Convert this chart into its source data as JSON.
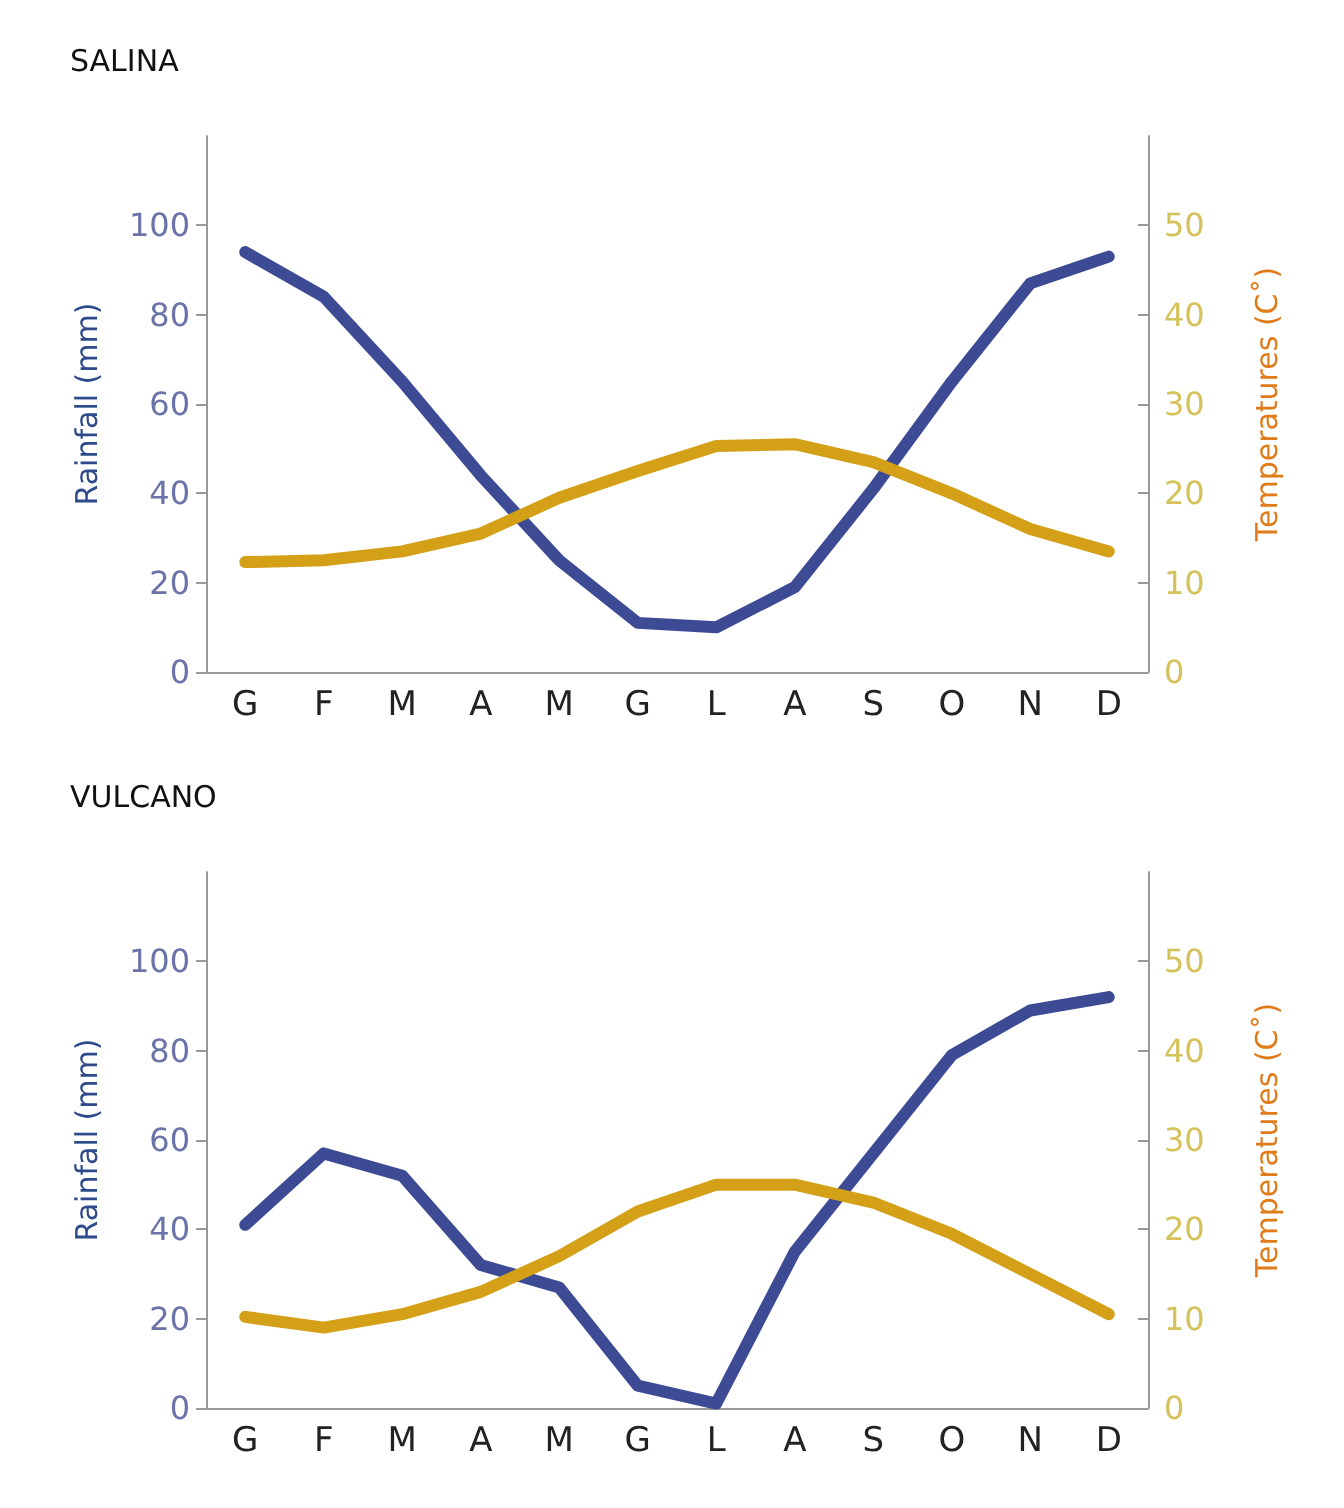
{
  "chart_data": [
    {
      "type": "line",
      "title": "SALINA",
      "ylabel": "Rainfall (mm)",
      "y2label": "Temperatures (C˚)",
      "categories": [
        "G",
        "F",
        "M",
        "A",
        "M",
        "G",
        "L",
        "A",
        "S",
        "O",
        "N",
        "D"
      ],
      "ylim": [
        0,
        120
      ],
      "yticks": [
        0,
        20,
        40,
        60,
        80,
        100
      ],
      "y2lim": [
        0,
        60
      ],
      "y2ticks": [
        0,
        10,
        20,
        30,
        40,
        50
      ],
      "grid": false,
      "marker": "none",
      "line_style": "solid",
      "series": [
        {
          "color": "#3d4a94",
          "values": [
            94,
            84,
            65,
            44,
            25,
            11,
            10,
            19,
            41,
            65,
            87,
            93
          ]
        },
        {
          "color": "#d4a017",
          "axis": "y2",
          "values": [
            12.3,
            12.5,
            13.5,
            15.5,
            19.5,
            22.5,
            25.3,
            25.5,
            23.5,
            20,
            16,
            13.5
          ]
        }
      ]
    },
    {
      "type": "line",
      "title": "VULCANO",
      "ylabel": "Rainfall (mm)",
      "y2label": "Temperatures (C˚)",
      "categories": [
        "G",
        "F",
        "M",
        "A",
        "M",
        "G",
        "L",
        "A",
        "S",
        "O",
        "N",
        "D"
      ],
      "ylim": [
        0,
        120
      ],
      "yticks": [
        0,
        20,
        40,
        60,
        80,
        100
      ],
      "y2lim": [
        0,
        60
      ],
      "y2ticks": [
        0,
        10,
        20,
        30,
        40,
        50
      ],
      "grid": false,
      "marker": "none",
      "line_style": "solid",
      "series": [
        {
          "color": "#3d4a94",
          "values": [
            41,
            57,
            52,
            32,
            27,
            5,
            1,
            35,
            57,
            79,
            89,
            92
          ]
        },
        {
          "color": "#d4a017",
          "axis": "y2",
          "values": [
            10.2,
            9,
            10.5,
            13,
            17,
            22,
            25,
            25,
            23,
            19.5,
            15,
            10.5
          ]
        }
      ]
    }
  ]
}
